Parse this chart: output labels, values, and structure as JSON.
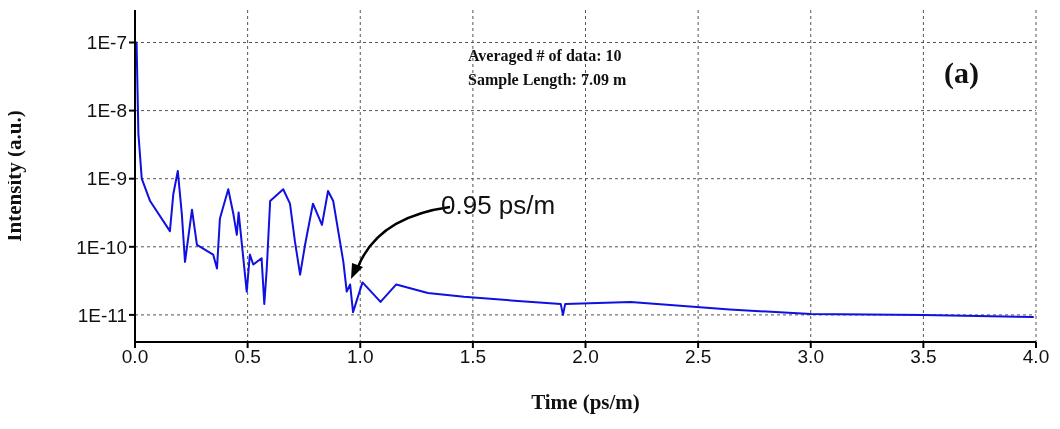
{
  "chart_data": {
    "type": "line",
    "xlabel": "Time (ps/m)",
    "ylabel": "Intensity (a.u.)",
    "annotations": [
      "Averaged # of data: 10",
      "Sample Length: 7.09 m",
      "(a)",
      "0.95 ps/m"
    ],
    "log": "y",
    "grid": true,
    "xlim": [
      0,
      4
    ],
    "xticks": [
      {
        "value": 0,
        "label": "0.0"
      },
      {
        "value": 0.5,
        "label": "0.5"
      },
      {
        "value": 1,
        "label": "1.0"
      },
      {
        "value": 1.5,
        "label": "1.5"
      },
      {
        "value": 2,
        "label": "2.0"
      },
      {
        "value": 2.5,
        "label": "2.5"
      },
      {
        "value": 3,
        "label": "3.0"
      },
      {
        "value": 3.5,
        "label": "3.5"
      },
      {
        "value": 4,
        "label": "4.0"
      }
    ],
    "ylim": [
      4e-12,
      3e-07
    ],
    "yticks": [
      {
        "value": 1e-11,
        "label": "1E-11"
      },
      {
        "value": 1e-10,
        "label": "1E-10"
      },
      {
        "value": 1e-09,
        "label": "1E-9"
      },
      {
        "value": 1e-08,
        "label": "1E-8"
      },
      {
        "value": 1e-07,
        "label": "1E-7"
      }
    ],
    "series": [
      {
        "color": "#1010e0",
        "x": [
          0,
          0.007,
          0.015,
          0.03,
          0.067,
          0.155,
          0.17,
          0.19,
          0.208,
          0.222,
          0.253,
          0.275,
          0.347,
          0.364,
          0.377,
          0.414,
          0.437,
          0.452,
          0.46,
          0.496,
          0.51,
          0.525,
          0.562,
          0.574,
          0.585,
          0.6,
          0.658,
          0.688,
          0.71,
          0.733,
          0.755,
          0.79,
          0.83,
          0.857,
          0.88,
          0.925,
          0.94,
          0.955,
          0.968,
          1.01,
          1.09,
          1.16,
          1.3,
          1.46,
          1.7,
          1.89,
          1.9,
          1.91,
          2.2,
          2.64,
          3.0,
          3.5,
          3.99
        ],
        "values": [
          1e-07,
          1e-07,
          4.6e-09,
          1e-09,
          4.7e-10,
          1.7e-10,
          5.9e-10,
          1.3e-09,
          3e-10,
          6e-11,
          3.5e-10,
          1.07e-10,
          7.7e-11,
          4.8e-11,
          2.6e-10,
          7e-10,
          3e-10,
          1.5e-10,
          3.2e-10,
          2.2e-11,
          7.7e-11,
          5.5e-11,
          6.8e-11,
          1.45e-11,
          4.8e-11,
          4.7e-10,
          7e-10,
          4.3e-10,
          1.2e-10,
          3.9e-11,
          1.07e-10,
          4.3e-10,
          2.1e-10,
          6.6e-10,
          4.7e-10,
          6e-11,
          2.2e-11,
          2.8e-11,
          1.1e-11,
          3e-11,
          1.55e-11,
          2.8e-11,
          2.1e-11,
          1.85e-11,
          1.6e-11,
          1.45e-11,
          1e-11,
          1.45e-11,
          1.55e-11,
          1.2e-11,
          1.03e-11,
          1e-11,
          9.3e-12
        ]
      }
    ]
  }
}
